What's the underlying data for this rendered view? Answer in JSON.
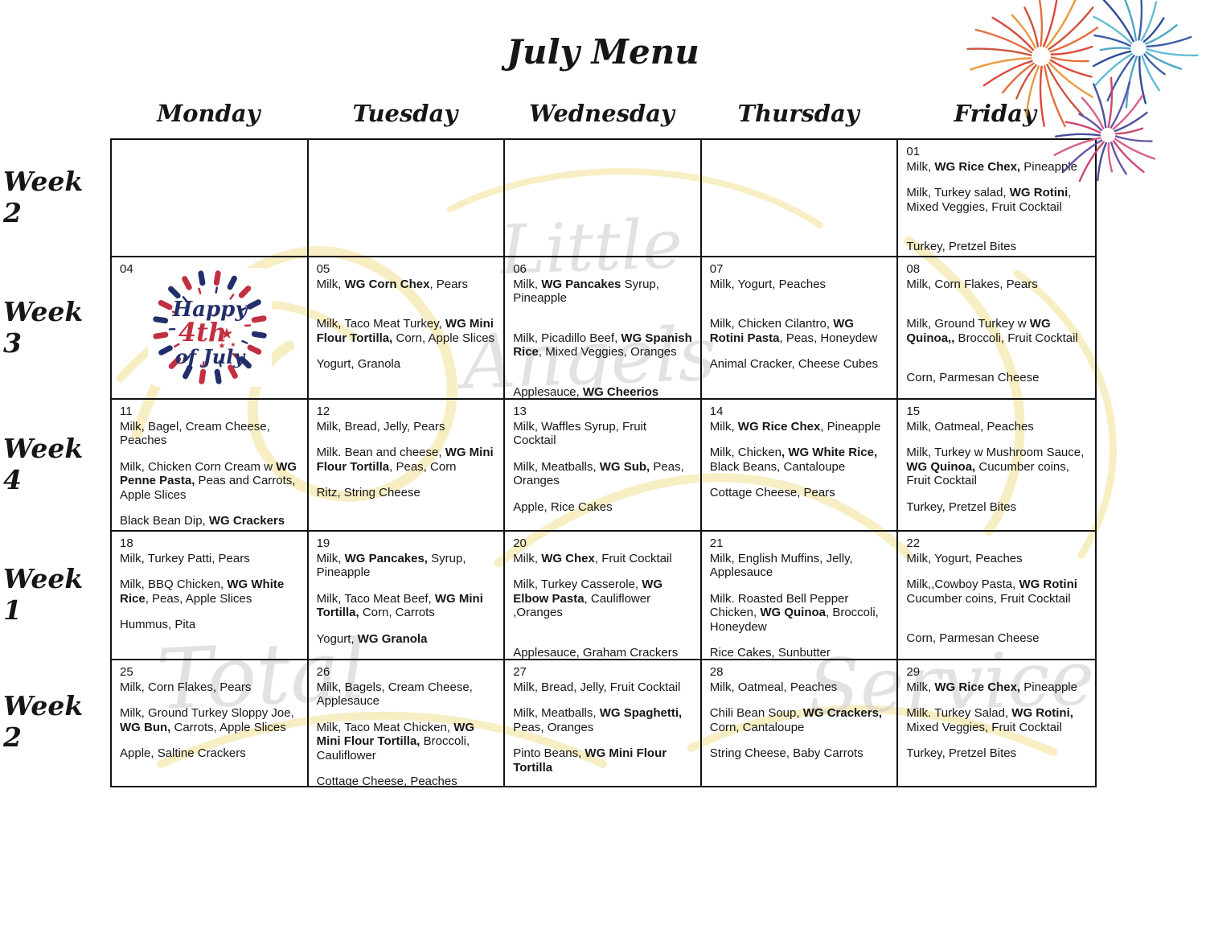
{
  "title": "July Menu",
  "calendar": {
    "day_headers": [
      "Monday",
      "Tuesday",
      "Wednesday",
      "Thursday",
      "Friday"
    ],
    "week_labels": [
      "Week 2",
      "Week 3",
      "Week 4",
      "Week 1",
      "Week 2"
    ],
    "rows": [
      {
        "week": "Week 2",
        "cells": [
          {
            "date": "",
            "paras": []
          },
          {
            "date": "",
            "paras": []
          },
          {
            "date": "",
            "paras": []
          },
          {
            "date": "",
            "paras": []
          },
          {
            "date": "01",
            "paras": [
              [
                [
                  "Milk, ",
                  0
                ],
                [
                  "WG Rice Chex,",
                  1
                ],
                [
                  " Pineapple",
                  0
                ]
              ],
              [
                [
                  "Milk, Turkey salad,  ",
                  0
                ],
                [
                  "WG Rotini",
                  1
                ],
                [
                  ", Mixed Veggies,  Fruit Cocktail",
                  0
                ]
              ],
              [],
              [
                [
                  "Turkey,  Pretzel Bites",
                  0
                ]
              ]
            ]
          }
        ]
      },
      {
        "week": "Week 3",
        "cells": [
          {
            "date": "04",
            "badge": true,
            "paras": []
          },
          {
            "date": "05",
            "paras": [
              [
                [
                  "Milk, ",
                  0
                ],
                [
                  "WG Corn Chex",
                  1
                ],
                [
                  ", Pears",
                  0
                ]
              ],
              [],
              [
                [
                  "Milk, Taco Meat Turkey,  ",
                  0
                ],
                [
                  "WG Mini Flour Tortilla,",
                  1
                ],
                [
                  " Corn, Apple Slices",
                  0
                ]
              ],
              [
                [
                  "Yogurt, Granola",
                  0
                ]
              ]
            ]
          },
          {
            "date": "06",
            "paras": [
              [
                [
                  "Milk, ",
                  0
                ],
                [
                  "WG Pancakes",
                  1
                ],
                [
                  " Syrup, Pineapple",
                  0
                ]
              ],
              [],
              [
                [
                  "Milk, Picadillo Beef, ",
                  0
                ],
                [
                  "WG Spanish Rice",
                  1
                ],
                [
                  ", Mixed Veggies, Oranges",
                  0
                ]
              ],
              [],
              [
                [
                  "Applesauce, ",
                  0
                ],
                [
                  "WG Cheerios",
                  1
                ]
              ]
            ]
          },
          {
            "date": "07",
            "paras": [
              [
                [
                  "Milk, Yogurt,  Peaches",
                  0
                ]
              ],
              [],
              [
                [
                  "Milk, Chicken Cilantro, ",
                  0
                ],
                [
                  "WG Rotini Pasta",
                  1
                ],
                [
                  ", Peas,  Honeydew",
                  0
                ]
              ],
              [
                [
                  "Animal Cracker, Cheese Cubes",
                  0
                ]
              ]
            ]
          },
          {
            "date": "08",
            "paras": [
              [
                [
                  "Milk, Corn Flakes, Pears",
                  0
                ]
              ],
              [],
              [
                [
                  "Milk, Ground Turkey w ",
                  0
                ],
                [
                  "WG Quinoa,,",
                  1
                ],
                [
                  " Broccoli, Fruit Cocktail",
                  0
                ]
              ],
              [],
              [
                [
                  "Corn, Parmesan Cheese",
                  0
                ]
              ]
            ]
          }
        ]
      },
      {
        "week": "Week 4",
        "cells": [
          {
            "date": "11",
            "paras": [
              [
                [
                  "Milk, Bagel, Cream Cheese, Peaches",
                  0
                ]
              ],
              [
                [
                  "Milk, Chicken Corn Cream w ",
                  0
                ],
                [
                  "WG Penne Pasta,",
                  1
                ],
                [
                  " Peas and Carrots, Apple Slices",
                  0
                ]
              ],
              [
                [
                  "Black Bean Dip, ",
                  0
                ],
                [
                  "WG Crackers",
                  1
                ]
              ]
            ]
          },
          {
            "date": "12",
            "paras": [
              [
                [
                  "Milk,  Bread, Jelly, Pears",
                  0
                ]
              ],
              [
                [
                  "Milk.   Bean and cheese, ",
                  0
                ],
                [
                  "WG Mini Flour Tortilla",
                  1
                ],
                [
                  ", Peas, Corn",
                  0
                ]
              ],
              [
                [
                  " Ritz,  String Cheese",
                  0
                ]
              ]
            ]
          },
          {
            "date": "13",
            "paras": [
              [
                [
                  "Milk, Waffles  Syrup, Fruit Cocktail",
                  0
                ]
              ],
              [
                [
                  "Milk, Meatballs, ",
                  0
                ],
                [
                  "WG Sub,",
                  1
                ],
                [
                  "  Peas, Oranges",
                  0
                ]
              ],
              [
                [
                  "Apple,  Rice Cakes",
                  0
                ]
              ]
            ]
          },
          {
            "date": "14",
            "paras": [
              [
                [
                  "Milk,  ",
                  0
                ],
                [
                  "WG Rice Chex",
                  1
                ],
                [
                  ", Pineapple",
                  0
                ]
              ],
              [
                [
                  "Milk, Chicken",
                  0
                ],
                [
                  ", WG White Rice,",
                  1
                ],
                [
                  "  Black Beans, Cantaloupe",
                  0
                ]
              ],
              [
                [
                  "Cottage Cheese, Pears",
                  0
                ]
              ]
            ]
          },
          {
            "date": "15",
            "paras": [
              [
                [
                  "Milk,  Oatmeal, Peaches",
                  0
                ]
              ],
              [
                [
                  "Milk, Turkey w Mushroom Sauce, ",
                  0
                ],
                [
                  "WG Quinoa,",
                  1
                ],
                [
                  " Cucumber coins, Fruit Cocktail",
                  0
                ]
              ],
              [
                [
                  "Turkey, Pretzel Bites",
                  0
                ]
              ]
            ]
          }
        ]
      },
      {
        "week": "Week 1",
        "cells": [
          {
            "date": "18",
            "paras": [
              [
                [
                  "Milk, Turkey Patti,  Pears",
                  0
                ]
              ],
              [
                [
                  "Milk, BBQ Chicken, ",
                  0
                ],
                [
                  "WG White Rice",
                  1
                ],
                [
                  ", Peas, Apple Slices",
                  0
                ]
              ],
              [
                [
                  "Hummus, Pita",
                  0
                ]
              ]
            ]
          },
          {
            "date": "19",
            "paras": [
              [
                [
                  "Milk, ",
                  0
                ],
                [
                  "WG Pancakes,",
                  1
                ],
                [
                  " Syrup, Pineapple",
                  0
                ]
              ],
              [
                [
                  "Milk, Taco Meat Beef, ",
                  0
                ],
                [
                  "WG Mini Tortilla,",
                  1
                ],
                [
                  " Corn, Carrots",
                  0
                ]
              ],
              [
                [
                  "Yogurt, ",
                  0
                ],
                [
                  "WG  Granola",
                  1
                ]
              ]
            ]
          },
          {
            "date": "20",
            "paras": [
              [
                [
                  "Milk, ",
                  0
                ],
                [
                  "WG Chex",
                  1
                ],
                [
                  ", Fruit Cocktail",
                  0
                ]
              ],
              [
                [
                  "Milk, Turkey Casserole, ",
                  0
                ],
                [
                  "WG Elbow Pasta",
                  1
                ],
                [
                  ", Cauliflower ,Oranges",
                  0
                ]
              ],
              [],
              [
                [
                  "Applesauce, Graham Crackers",
                  0
                ]
              ]
            ]
          },
          {
            "date": "21",
            "paras": [
              [
                [
                  "Milk, English Muffins, Jelly, Applesauce",
                  0
                ]
              ],
              [
                [
                  "Milk.  Roasted Bell Pepper Chicken, ",
                  0
                ],
                [
                  "WG Quinoa",
                  1
                ],
                [
                  ",  Broccoli,  Honeydew",
                  0
                ]
              ],
              [
                [
                  "Rice Cakes, Sunbutter",
                  0
                ]
              ]
            ]
          },
          {
            "date": "22",
            "paras": [
              [
                [
                  "Milk, Yogurt, Peaches",
                  0
                ]
              ],
              [
                [
                  "Milk,,Cowboy Pasta, ",
                  0
                ],
                [
                  "WG Rotini",
                  1
                ],
                [
                  " Cucumber coins, Fruit Cocktail",
                  0
                ]
              ],
              [],
              [
                [
                  "Corn, Parmesan Cheese",
                  0
                ]
              ]
            ]
          }
        ]
      },
      {
        "week": "Week 2",
        "cells": [
          {
            "date": "25",
            "paras": [
              [
                [
                  " Milk, Corn Flakes, Pears",
                  0
                ]
              ],
              [
                [
                  "Milk, Ground Turkey Sloppy Joe, ",
                  0
                ],
                [
                  "WG Bun,",
                  1
                ],
                [
                  " Carrots, Apple Slices",
                  0
                ]
              ],
              [
                [
                  "Apple, Saltine Crackers",
                  0
                ]
              ]
            ]
          },
          {
            "date": "26",
            "paras": [
              [
                [
                  "Milk, Bagels, Cream Cheese, Applesauce",
                  0
                ]
              ],
              [
                [
                  "Milk, Taco Meat Chicken, ",
                  0
                ],
                [
                  "WG Mini Flour Tortilla,",
                  1
                ],
                [
                  " Broccoli, Cauliflower",
                  0
                ]
              ],
              [
                [
                  "Cottage Cheese, Peaches",
                  0
                ]
              ]
            ]
          },
          {
            "date": "27",
            "paras": [
              [
                [
                  "Milk, Bread, Jelly, Fruit Cocktail",
                  0
                ]
              ],
              [
                [
                  "Milk, Meatballs, ",
                  0
                ],
                [
                  "WG Spaghetti,",
                  1
                ],
                [
                  " Peas, Oranges",
                  0
                ]
              ],
              [
                [
                  "Pinto Beans, ",
                  0
                ],
                [
                  "WG Mini Flour Tortilla",
                  1
                ]
              ]
            ]
          },
          {
            "date": "28",
            "paras": [
              [
                [
                  "Milk, Oatmeal, Peaches",
                  0
                ]
              ],
              [
                [
                  "Chili Bean Soup, ",
                  0
                ],
                [
                  "WG Crackers,",
                  1
                ],
                [
                  " Corn, Cantaloupe",
                  0
                ]
              ],
              [
                [
                  "String Cheese, Baby Carrots",
                  0
                ]
              ]
            ]
          },
          {
            "date": "29",
            "paras": [
              [
                [
                  "Milk, ",
                  0
                ],
                [
                  "WG Rice Chex,",
                  1
                ],
                [
                  " Pineapple",
                  0
                ]
              ],
              [
                [
                  "Milk. Turkey Salad, ",
                  0
                ],
                [
                  "WG Rotini,",
                  1
                ],
                [
                  " Mixed Veggies, Fruit Cocktail",
                  0
                ]
              ],
              [
                [
                  "Turkey, Pretzel Bites",
                  0
                ]
              ]
            ]
          }
        ]
      }
    ]
  },
  "badge": {
    "line1": "Happy",
    "line2": "4th",
    "line3": "of July",
    "star": "★"
  },
  "watermark": {
    "words": [
      "Little",
      "Angels",
      "Total",
      "Service"
    ]
  },
  "decor": {
    "navy": "#232f6b",
    "red": "#c22f40",
    "swirl_color": "#f3e093",
    "watermark_color": "#cccccc",
    "fireworks": [
      {
        "colors": [
          "#e2622f",
          "#d93a2b",
          "#e78f2e",
          "#c9452f"
        ]
      },
      {
        "colors": [
          "#3f9fc0",
          "#2b4f9e",
          "#56b7cf",
          "#1f3d8c"
        ]
      },
      {
        "colors": [
          "#c93a62",
          "#584a9e",
          "#d5547e",
          "#3c3f95"
        ]
      }
    ]
  }
}
